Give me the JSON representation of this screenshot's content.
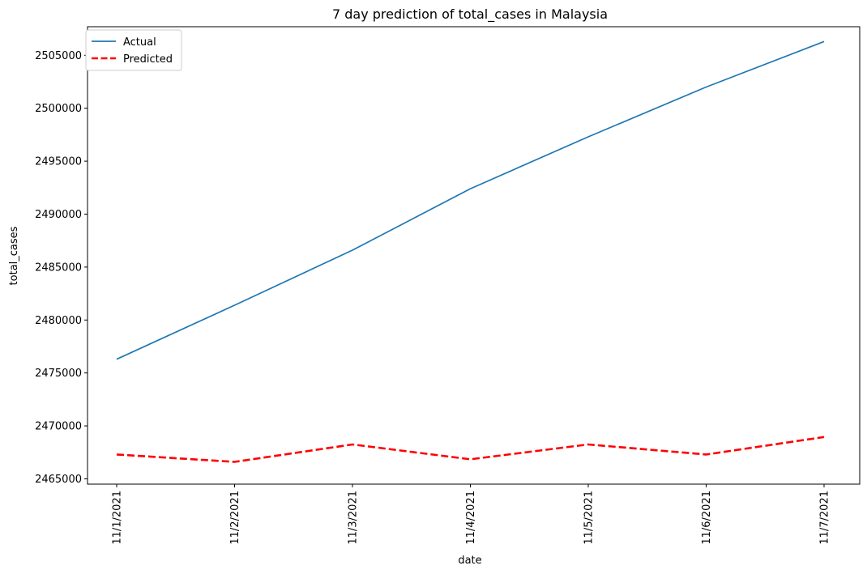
{
  "chart_data": {
    "type": "line",
    "title": "7 day prediction of total_cases in Malaysia",
    "xlabel": "date",
    "ylabel": "total_cases",
    "categories": [
      "11/1/2021",
      "11/2/2021",
      "11/3/2021",
      "11/4/2021",
      "11/5/2021",
      "11/6/2021",
      "11/7/2021"
    ],
    "yticks": [
      2465000,
      2470000,
      2475000,
      2480000,
      2485000,
      2490000,
      2495000,
      2500000,
      2505000
    ],
    "ylim": [
      2464500,
      2507700
    ],
    "grid": false,
    "legend_position": "upper-left",
    "series": [
      {
        "name": "Actual",
        "color": "#1f77b4",
        "style": "solid",
        "values": [
          2476300,
          2481400,
          2486600,
          2492400,
          2497300,
          2502000,
          2506300
        ]
      },
      {
        "name": "Predicted",
        "color": "#ff0000",
        "style": "dashed",
        "values": [
          2467300,
          2466600,
          2468250,
          2466850,
          2468250,
          2467300,
          2468950
        ]
      }
    ]
  }
}
